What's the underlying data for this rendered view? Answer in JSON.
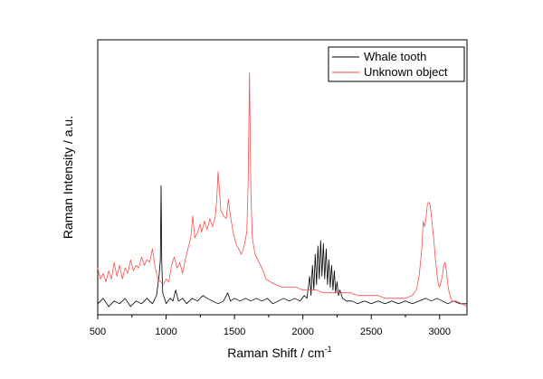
{
  "chart_data": {
    "type": "line",
    "xlabel": "Raman Shift / cm",
    "xlabel_superscript": "-1",
    "ylabel": "Raman Intensity / a.u.",
    "xlim": [
      500,
      3200
    ],
    "ylim": [
      0,
      100
    ],
    "x_ticks": [
      500,
      1000,
      1500,
      2000,
      2500,
      3000
    ],
    "y_ticks_shown": false,
    "grid": false,
    "legend_position": "top-right",
    "series": [
      {
        "name": "Whale tooth",
        "color": "#000000",
        "points": [
          [
            500,
            4
          ],
          [
            540,
            6
          ],
          [
            580,
            3
          ],
          [
            620,
            5
          ],
          [
            660,
            4
          ],
          [
            700,
            6
          ],
          [
            740,
            3
          ],
          [
            780,
            5
          ],
          [
            820,
            4
          ],
          [
            860,
            6
          ],
          [
            900,
            4
          ],
          [
            930,
            7
          ],
          [
            950,
            15
          ],
          [
            958,
            20
          ],
          [
            963,
            47
          ],
          [
            968,
            20
          ],
          [
            975,
            8
          ],
          [
            1000,
            4
          ],
          [
            1030,
            6
          ],
          [
            1050,
            5
          ],
          [
            1070,
            9
          ],
          [
            1090,
            5
          ],
          [
            1120,
            6
          ],
          [
            1150,
            4
          ],
          [
            1190,
            6
          ],
          [
            1230,
            5
          ],
          [
            1270,
            7
          ],
          [
            1300,
            6
          ],
          [
            1340,
            5
          ],
          [
            1380,
            4
          ],
          [
            1420,
            5
          ],
          [
            1450,
            8
          ],
          [
            1470,
            5
          ],
          [
            1500,
            6
          ],
          [
            1540,
            5
          ],
          [
            1580,
            6
          ],
          [
            1620,
            5
          ],
          [
            1660,
            6
          ],
          [
            1700,
            5
          ],
          [
            1740,
            6
          ],
          [
            1780,
            4
          ],
          [
            1820,
            5
          ],
          [
            1860,
            6
          ],
          [
            1900,
            5
          ],
          [
            1940,
            6
          ],
          [
            1980,
            5
          ],
          [
            2010,
            7
          ],
          [
            2030,
            6
          ],
          [
            2050,
            14
          ],
          [
            2060,
            7
          ],
          [
            2070,
            18
          ],
          [
            2080,
            9
          ],
          [
            2090,
            22
          ],
          [
            2100,
            11
          ],
          [
            2110,
            25
          ],
          [
            2120,
            13
          ],
          [
            2130,
            27
          ],
          [
            2140,
            14
          ],
          [
            2150,
            26
          ],
          [
            2160,
            13
          ],
          [
            2170,
            24
          ],
          [
            2180,
            11
          ],
          [
            2190,
            20
          ],
          [
            2200,
            10
          ],
          [
            2210,
            18
          ],
          [
            2220,
            9
          ],
          [
            2230,
            16
          ],
          [
            2240,
            8
          ],
          [
            2250,
            12
          ],
          [
            2260,
            7
          ],
          [
            2270,
            9
          ],
          [
            2290,
            6
          ],
          [
            2320,
            5
          ],
          [
            2360,
            5
          ],
          [
            2400,
            4
          ],
          [
            2450,
            5
          ],
          [
            2500,
            4
          ],
          [
            2550,
            5
          ],
          [
            2600,
            4
          ],
          [
            2650,
            5
          ],
          [
            2700,
            4
          ],
          [
            2750,
            5
          ],
          [
            2800,
            4
          ],
          [
            2850,
            5
          ],
          [
            2900,
            6
          ],
          [
            2940,
            5
          ],
          [
            2980,
            6
          ],
          [
            3020,
            5
          ],
          [
            3060,
            4
          ],
          [
            3100,
            5
          ],
          [
            3150,
            4
          ],
          [
            3200,
            4
          ]
        ]
      },
      {
        "name": "Unknown object",
        "color": "#ff4a4a",
        "points": [
          [
            500,
            17
          ],
          [
            520,
            13
          ],
          [
            540,
            15
          ],
          [
            560,
            12
          ],
          [
            580,
            16
          ],
          [
            600,
            13
          ],
          [
            620,
            19
          ],
          [
            640,
            14
          ],
          [
            660,
            18
          ],
          [
            680,
            13
          ],
          [
            700,
            17
          ],
          [
            720,
            15
          ],
          [
            740,
            20
          ],
          [
            760,
            16
          ],
          [
            780,
            18
          ],
          [
            800,
            17
          ],
          [
            820,
            21
          ],
          [
            840,
            18
          ],
          [
            860,
            20
          ],
          [
            880,
            19
          ],
          [
            900,
            24
          ],
          [
            920,
            17
          ],
          [
            940,
            13
          ],
          [
            960,
            12
          ],
          [
            980,
            11
          ],
          [
            1000,
            13
          ],
          [
            1020,
            12
          ],
          [
            1040,
            18
          ],
          [
            1060,
            21
          ],
          [
            1080,
            17
          ],
          [
            1100,
            19
          ],
          [
            1120,
            15
          ],
          [
            1140,
            20
          ],
          [
            1160,
            24
          ],
          [
            1180,
            28
          ],
          [
            1195,
            36
          ],
          [
            1210,
            28
          ],
          [
            1230,
            30
          ],
          [
            1250,
            33
          ],
          [
            1260,
            30
          ],
          [
            1280,
            34
          ],
          [
            1300,
            31
          ],
          [
            1320,
            35
          ],
          [
            1340,
            32
          ],
          [
            1360,
            36
          ],
          [
            1370,
            42
          ],
          [
            1380,
            52
          ],
          [
            1390,
            45
          ],
          [
            1400,
            38
          ],
          [
            1420,
            36
          ],
          [
            1440,
            35
          ],
          [
            1455,
            42
          ],
          [
            1470,
            36
          ],
          [
            1490,
            30
          ],
          [
            1510,
            26
          ],
          [
            1530,
            24
          ],
          [
            1550,
            22
          ],
          [
            1570,
            25
          ],
          [
            1590,
            30
          ],
          [
            1600,
            48
          ],
          [
            1610,
            88
          ],
          [
            1620,
            45
          ],
          [
            1630,
            28
          ],
          [
            1650,
            22
          ],
          [
            1670,
            20
          ],
          [
            1690,
            18
          ],
          [
            1710,
            16
          ],
          [
            1730,
            13
          ],
          [
            1760,
            12
          ],
          [
            1800,
            11
          ],
          [
            1850,
            10
          ],
          [
            1900,
            10
          ],
          [
            1950,
            10
          ],
          [
            2000,
            9
          ],
          [
            2050,
            9
          ],
          [
            2100,
            9
          ],
          [
            2150,
            8
          ],
          [
            2200,
            8
          ],
          [
            2250,
            8
          ],
          [
            2300,
            8
          ],
          [
            2350,
            8
          ],
          [
            2400,
            7
          ],
          [
            2450,
            7
          ],
          [
            2500,
            7
          ],
          [
            2550,
            7
          ],
          [
            2600,
            6
          ],
          [
            2650,
            6
          ],
          [
            2700,
            6
          ],
          [
            2750,
            6
          ],
          [
            2800,
            7
          ],
          [
            2830,
            9
          ],
          [
            2850,
            14
          ],
          [
            2870,
            24
          ],
          [
            2880,
            34
          ],
          [
            2890,
            32
          ],
          [
            2900,
            35
          ],
          [
            2910,
            40
          ],
          [
            2920,
            41
          ],
          [
            2930,
            40
          ],
          [
            2940,
            36
          ],
          [
            2950,
            31
          ],
          [
            2960,
            26
          ],
          [
            2970,
            20
          ],
          [
            2980,
            15
          ],
          [
            2990,
            11
          ],
          [
            3000,
            10
          ],
          [
            3010,
            12
          ],
          [
            3020,
            14
          ],
          [
            3030,
            18
          ],
          [
            3040,
            19
          ],
          [
            3050,
            16
          ],
          [
            3060,
            11
          ],
          [
            3070,
            8
          ],
          [
            3090,
            5
          ],
          [
            3120,
            5
          ],
          [
            3160,
            4
          ],
          [
            3200,
            3
          ]
        ]
      }
    ]
  }
}
